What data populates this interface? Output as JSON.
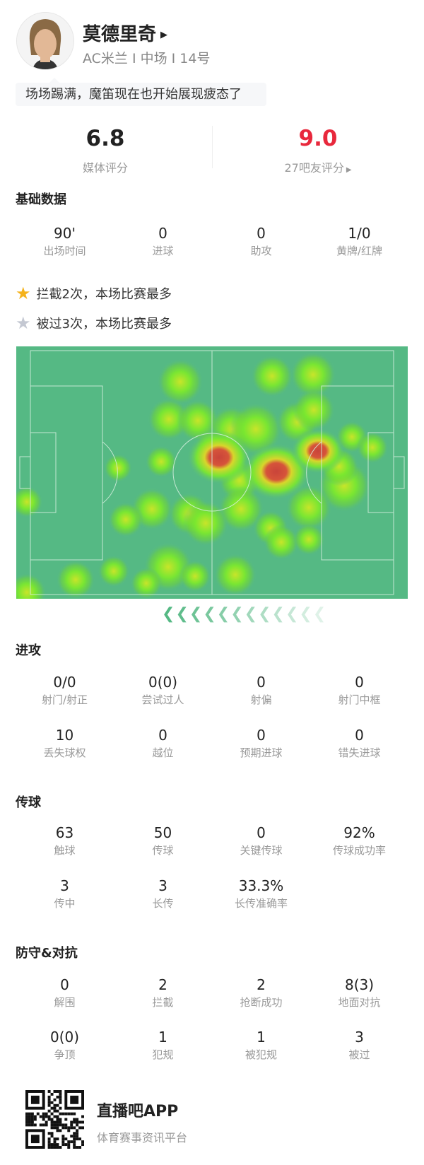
{
  "player": {
    "name": "莫德里奇",
    "info": "AC米兰 I 中场 I 14号",
    "comment": "场场踢满，魔笛现在也开始展现疲态了"
  },
  "ratings": {
    "media_score": "6.8",
    "media_label": "媒体评分",
    "fan_score": "9.0",
    "fan_label": "27吧友评分",
    "fan_color": "#e8283c"
  },
  "basic": {
    "title": "基础数据",
    "stats": [
      {
        "value": "90'",
        "label": "出场时间"
      },
      {
        "value": "0",
        "label": "进球"
      },
      {
        "value": "0",
        "label": "助攻"
      },
      {
        "value": "1/0",
        "label": "黄牌/红牌"
      }
    ]
  },
  "highlights": [
    {
      "icon": "gold-star-icon",
      "color": "#f5b31d",
      "text": "拦截2次，本场比赛最多"
    },
    {
      "icon": "silver-star-icon",
      "color": "#c4c8d2",
      "text": "被过3次，本场比赛最多"
    }
  ],
  "heatmap": {
    "pitch_color": "#55b984",
    "direction": "attacking-left"
  },
  "attack": {
    "title": "进攻",
    "stats": [
      {
        "value": "0/0",
        "label": "射门/射正"
      },
      {
        "value": "0(0)",
        "label": "尝试过人"
      },
      {
        "value": "0",
        "label": "射偏"
      },
      {
        "value": "0",
        "label": "射门中框"
      },
      {
        "value": "10",
        "label": "丢失球权"
      },
      {
        "value": "0",
        "label": "越位"
      },
      {
        "value": "0",
        "label": "预期进球"
      },
      {
        "value": "0",
        "label": "错失进球"
      }
    ]
  },
  "passing": {
    "title": "传球",
    "stats": [
      {
        "value": "63",
        "label": "触球"
      },
      {
        "value": "50",
        "label": "传球"
      },
      {
        "value": "0",
        "label": "关键传球"
      },
      {
        "value": "92%",
        "label": "传球成功率"
      },
      {
        "value": "3",
        "label": "传中"
      },
      {
        "value": "3",
        "label": "长传"
      },
      {
        "value": "33.3%",
        "label": "长传准确率"
      }
    ]
  },
  "defense": {
    "title": "防守&对抗",
    "stats": [
      {
        "value": "0",
        "label": "解围"
      },
      {
        "value": "2",
        "label": "拦截"
      },
      {
        "value": "2",
        "label": "抢断成功"
      },
      {
        "value": "8(3)",
        "label": "地面对抗"
      },
      {
        "value": "0(0)",
        "label": "争顶"
      },
      {
        "value": "1",
        "label": "犯规"
      },
      {
        "value": "1",
        "label": "被犯规"
      },
      {
        "value": "3",
        "label": "被过"
      }
    ]
  },
  "footer": {
    "app_name": "直播吧APP",
    "app_tagline": "体育赛事资讯平台"
  }
}
